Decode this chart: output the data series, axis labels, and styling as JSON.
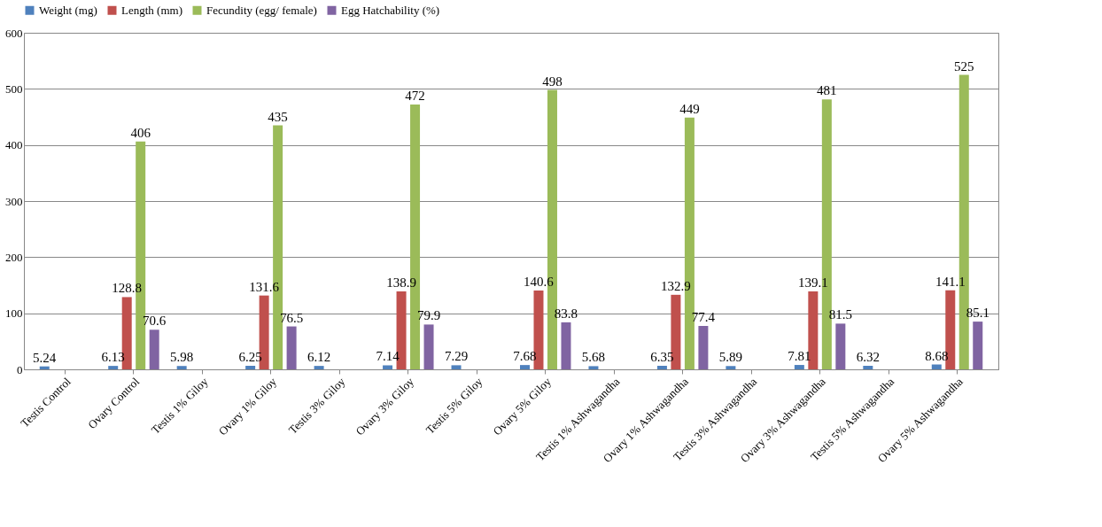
{
  "chart_data": {
    "type": "bar",
    "categories": [
      "Testis Control",
      "Ovary Control",
      "Testis 1% Giloy",
      "Ovary 1% Giloy",
      "Testis 3% Giloy",
      "Ovary 3% Giloy",
      "Testis 5% Giloy",
      "Ovary 5% Giloy",
      "Testis 1% Ashwagandha",
      "Ovary 1% Ashwagandha",
      "Testis 3% Ashwagandha",
      "Ovary 3% Ashwagandha",
      "Testis 5% Ashwagandha",
      "Ovary 5% Ashwagandha"
    ],
    "series": [
      {
        "name": "Weight (mg)",
        "color": "#4f81bd",
        "values": [
          5.24,
          6.13,
          5.98,
          6.25,
          6.12,
          7.14,
          7.29,
          7.68,
          5.68,
          6.35,
          5.89,
          7.81,
          6.32,
          8.68
        ]
      },
      {
        "name": "Length (mm)",
        "color": "#c0504d",
        "values": [
          null,
          128.8,
          null,
          131.6,
          null,
          138.9,
          null,
          140.6,
          null,
          132.9,
          null,
          139.1,
          null,
          141.1
        ]
      },
      {
        "name": "Fecundity (egg/ female)",
        "color": "#9bbb59",
        "values": [
          null,
          406,
          null,
          435,
          null,
          472,
          null,
          498,
          null,
          449,
          null,
          481,
          null,
          525
        ]
      },
      {
        "name": "Egg Hatchability (%)",
        "color": "#8064a2",
        "values": [
          null,
          70.6,
          null,
          76.5,
          null,
          79.9,
          null,
          83.8,
          null,
          77.4,
          null,
          81.5,
          null,
          85.1
        ]
      }
    ],
    "ylim": [
      0,
      600
    ],
    "yticks": [
      0,
      100,
      200,
      300,
      400,
      500,
      600
    ],
    "grid": "y",
    "legend": "top",
    "data_labels": true
  }
}
